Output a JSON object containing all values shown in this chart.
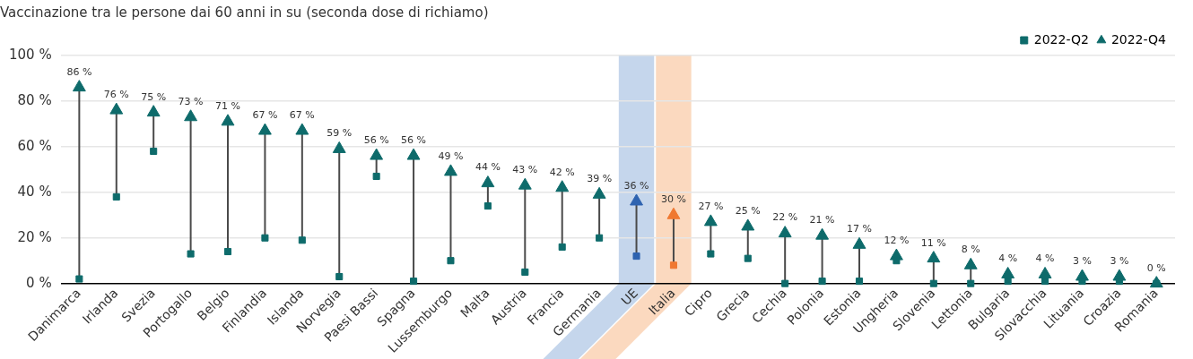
{
  "chart_data": {
    "type": "scatter",
    "title": "Vaccinazione tra le persone dai 60 anni in su (seconda dose di richiamo)",
    "categories": [
      "Danimarca",
      "Irlanda",
      "Svezia",
      "Portogallo",
      "Belgio",
      "Finlandia",
      "Islanda",
      "Norvegia",
      "Paesi Bassi",
      "Spagna",
      "Lussemburgo",
      "Malta",
      "Austria",
      "Francia",
      "Germania",
      "UE",
      "Italia",
      "Cipro",
      "Grecia",
      "Cechia",
      "Polonia",
      "Estonia",
      "Ungheria",
      "Slovenia",
      "Lettonia",
      "Bulgaria",
      "Slovacchia",
      "Lituania",
      "Croazia",
      "Romania"
    ],
    "series": [
      {
        "name": "2022-Q2",
        "marker": "square",
        "color": "#0e6b6b",
        "colors": [
          "#0e6b6b",
          "#0e6b6b",
          "#0e6b6b",
          "#0e6b6b",
          "#0e6b6b",
          "#0e6b6b",
          "#0e6b6b",
          "#0e6b6b",
          "#0e6b6b",
          "#0e6b6b",
          "#0e6b6b",
          "#0e6b6b",
          "#0e6b6b",
          "#0e6b6b",
          "#0e6b6b",
          "#2e63b0",
          "#f07830",
          "#0e6b6b",
          "#0e6b6b",
          "#0e6b6b",
          "#0e6b6b",
          "#0e6b6b",
          "#0e6b6b",
          "#0e6b6b",
          "#0e6b6b",
          "#0e6b6b",
          "#0e6b6b",
          "#0e6b6b",
          "#0e6b6b",
          "#0e6b6b"
        ],
        "values": [
          2,
          38,
          58,
          13,
          14,
          20,
          19,
          3,
          47,
          1,
          10,
          34,
          5,
          16,
          20,
          12,
          8,
          13,
          11,
          0,
          1,
          1,
          10,
          0,
          0,
          1,
          1,
          1,
          1,
          0
        ]
      },
      {
        "name": "2022-Q4",
        "marker": "triangle",
        "color": "#0e6b6b",
        "colors": [
          "#0e6b6b",
          "#0e6b6b",
          "#0e6b6b",
          "#0e6b6b",
          "#0e6b6b",
          "#0e6b6b",
          "#0e6b6b",
          "#0e6b6b",
          "#0e6b6b",
          "#0e6b6b",
          "#0e6b6b",
          "#0e6b6b",
          "#0e6b6b",
          "#0e6b6b",
          "#0e6b6b",
          "#2e63b0",
          "#f07830",
          "#0e6b6b",
          "#0e6b6b",
          "#0e6b6b",
          "#0e6b6b",
          "#0e6b6b",
          "#0e6b6b",
          "#0e6b6b",
          "#0e6b6b",
          "#0e6b6b",
          "#0e6b6b",
          "#0e6b6b",
          "#0e6b6b",
          "#0e6b6b"
        ],
        "values": [
          86,
          76,
          75,
          73,
          71,
          67,
          67,
          59,
          56,
          56,
          49,
          44,
          43,
          42,
          39,
          36,
          30,
          27,
          25,
          22,
          21,
          17,
          12,
          11,
          8,
          4,
          4,
          3,
          3,
          0
        ],
        "value_labels": [
          "86 %",
          "76 %",
          "75 %",
          "73 %",
          "71 %",
          "67 %",
          "67 %",
          "59 %",
          "56 %",
          "56 %",
          "49 %",
          "44 %",
          "43 %",
          "42 %",
          "39 %",
          "36 %",
          "30 %",
          "27 %",
          "25 %",
          "22 %",
          "21 %",
          "17 %",
          "12 %",
          "11 %",
          "8 %",
          "4 %",
          "4 %",
          "3 %",
          "3 %",
          "0 %"
        ]
      }
    ],
    "ylim": [
      0,
      100
    ],
    "yticks": [
      {
        "value": 0,
        "label": "0 %"
      },
      {
        "value": 20,
        "label": "20 %"
      },
      {
        "value": 40,
        "label": "40 %"
      },
      {
        "value": 60,
        "label": "60 %"
      },
      {
        "value": 80,
        "label": "80 %"
      },
      {
        "value": 100,
        "label": "100 %"
      }
    ],
    "bands": [
      {
        "axis": "x",
        "from": "UE",
        "to": "UE",
        "color": "#c5d6ec"
      },
      {
        "axis": "x",
        "from": "Italia",
        "to": "Italia",
        "color": "#fbd9bf"
      }
    ],
    "grid": "y",
    "legend": "top right"
  }
}
